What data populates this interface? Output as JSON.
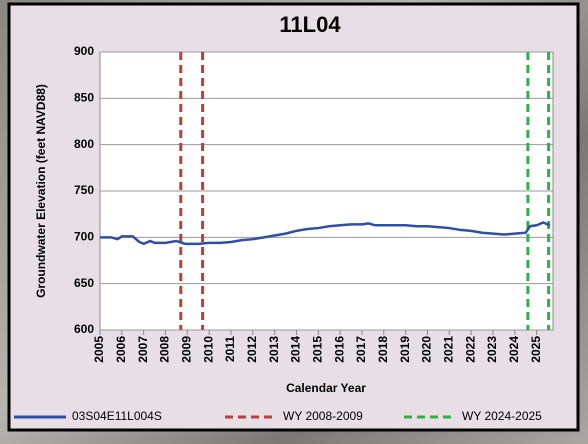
{
  "chart_data": {
    "type": "line",
    "title": "11L04",
    "x_label": "Calendar Year",
    "y_label": "Groundwater Elevation (feet NAVD88)",
    "xlim": [
      2005,
      2025.75
    ],
    "xticks": [
      2005,
      2006,
      2007,
      2008,
      2009,
      2010,
      2011,
      2012,
      2013,
      2014,
      2015,
      2016,
      2017,
      2018,
      2019,
      2020,
      2021,
      2022,
      2023,
      2024,
      2025
    ],
    "ylim": [
      600,
      900
    ],
    "yticks": [
      600,
      650,
      700,
      750,
      800,
      850,
      900
    ],
    "grid": true,
    "series": [
      {
        "name": "03S04E11L004S",
        "color": "#2e4fa3",
        "x": [
          2005,
          2005.5,
          2005.8,
          2006,
          2006.5,
          2006.8,
          2007,
          2007.3,
          2007.5,
          2008,
          2008.5,
          2008.9,
          2009.5,
          2010,
          2010.5,
          2011,
          2011.5,
          2012,
          2012.5,
          2013,
          2013.5,
          2014,
          2014.5,
          2015,
          2015.5,
          2016,
          2016.5,
          2017,
          2017.3,
          2017.6,
          2018,
          2018.5,
          2019,
          2019.5,
          2020,
          2020.5,
          2021,
          2021.5,
          2022,
          2022.5,
          2023,
          2023.5,
          2024,
          2024.5,
          2024.7,
          2025,
          2025.3,
          2025.6
        ],
        "values": [
          700,
          700,
          698,
          701,
          701,
          695,
          693,
          696,
          694,
          694,
          696,
          693,
          693,
          694,
          694,
          695,
          697,
          698,
          700,
          702,
          704,
          707,
          709,
          710,
          712,
          713,
          714,
          714,
          715,
          713,
          713,
          713,
          713,
          712,
          712,
          711,
          710,
          708,
          707,
          705,
          704,
          703,
          704,
          705,
          712,
          713,
          716,
          713
        ]
      }
    ],
    "vlines": [
      {
        "name": "WY 2008-2009",
        "color": "#b5413a",
        "x": [
          2008.7,
          2009.7
        ]
      },
      {
        "name": "WY 2024-2025",
        "color": "#2bb04a",
        "x": [
          2024.6,
          2025.55
        ]
      }
    ]
  }
}
